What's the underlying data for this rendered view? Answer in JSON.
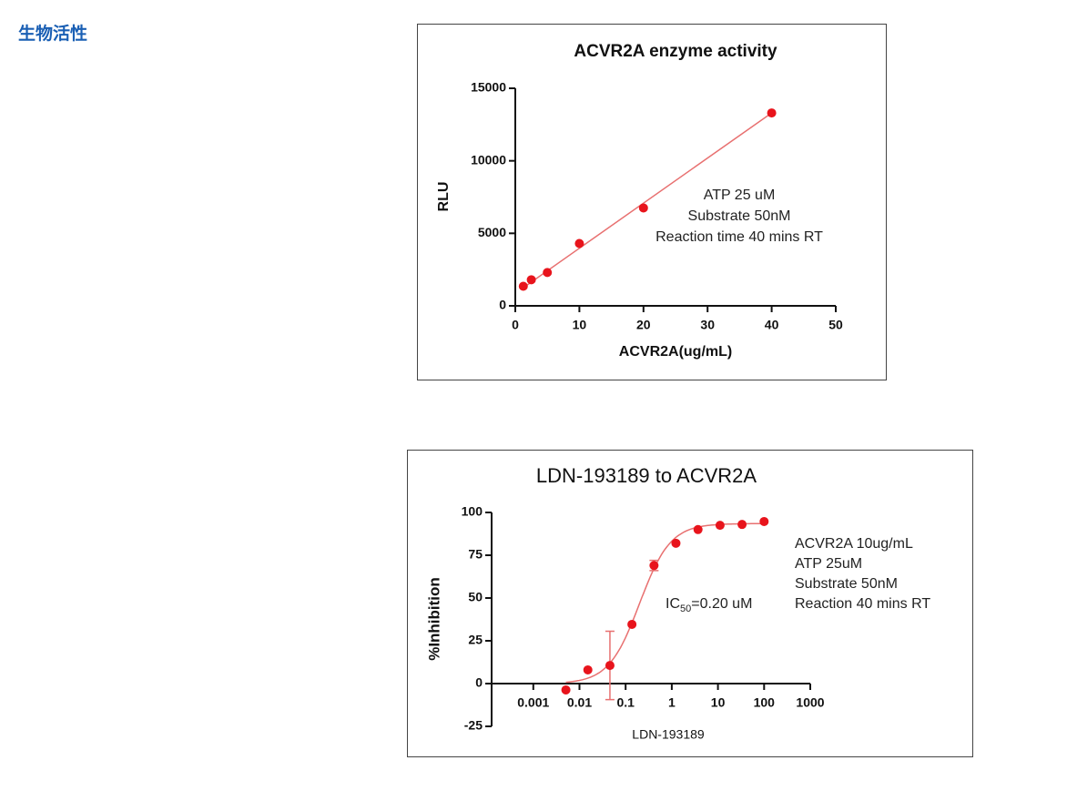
{
  "header": {
    "title": "生物活性"
  },
  "chart_data": [
    {
      "type": "scatter",
      "title": "ACVR2A enzyme activity",
      "x_label": "ACVR2A(ug/mL)",
      "y_label": "RLU",
      "x": [
        1.25,
        2.5,
        5,
        10,
        20,
        40
      ],
      "values": [
        1350,
        1800,
        2300,
        4300,
        6750,
        13300
      ],
      "color": "#e8141c",
      "fit": {
        "x": [
          1.25,
          40
        ],
        "values": [
          1250,
          13300
        ],
        "color": "#e87070"
      },
      "xlim": [
        0,
        50
      ],
      "xticks": [
        0,
        10,
        20,
        30,
        40,
        50
      ],
      "ylim": [
        0,
        15000
      ],
      "yticks": [
        0,
        5000,
        10000,
        15000
      ],
      "annotation": [
        "ATP 25 uM",
        "Substrate 50nM",
        "Reaction time 40 mins RT"
      ]
    },
    {
      "type": "scatter",
      "title": "LDN-193189 to ACVR2A",
      "x_label": "LDN-193189",
      "y_label": "%Inhibition",
      "x": [
        0.00508,
        0.0152,
        0.0457,
        0.137,
        0.412,
        1.23,
        3.7,
        11.1,
        33.3,
        100
      ],
      "values": [
        -3.7,
        8,
        10.6,
        34.6,
        69,
        82,
        90,
        92.5,
        93,
        94.7
      ],
      "errors": [
        null,
        null,
        20,
        null,
        3,
        null,
        null,
        null,
        null,
        null
      ],
      "color": "#e8141c",
      "log_x": true,
      "fit": {
        "bottom": 0,
        "top": 93.5,
        "ic50": 0.2,
        "hill": 1.3,
        "color": "#e87070"
      },
      "xlim": [
        0.000125,
        1000
      ],
      "xticks": [
        0.001,
        0.01,
        0.1,
        1,
        10,
        100,
        1000
      ],
      "ylim": [
        -25,
        100
      ],
      "yticks": [
        -25,
        0,
        25,
        50,
        75,
        100
      ],
      "annotation": [
        "ACVR2A 10ug/mL",
        "ATP 25uM",
        "Substrate 50nM",
        "Reaction 40 mins RT"
      ],
      "ic50_label": [
        "IC",
        "50",
        "=0.20 uM"
      ]
    }
  ]
}
